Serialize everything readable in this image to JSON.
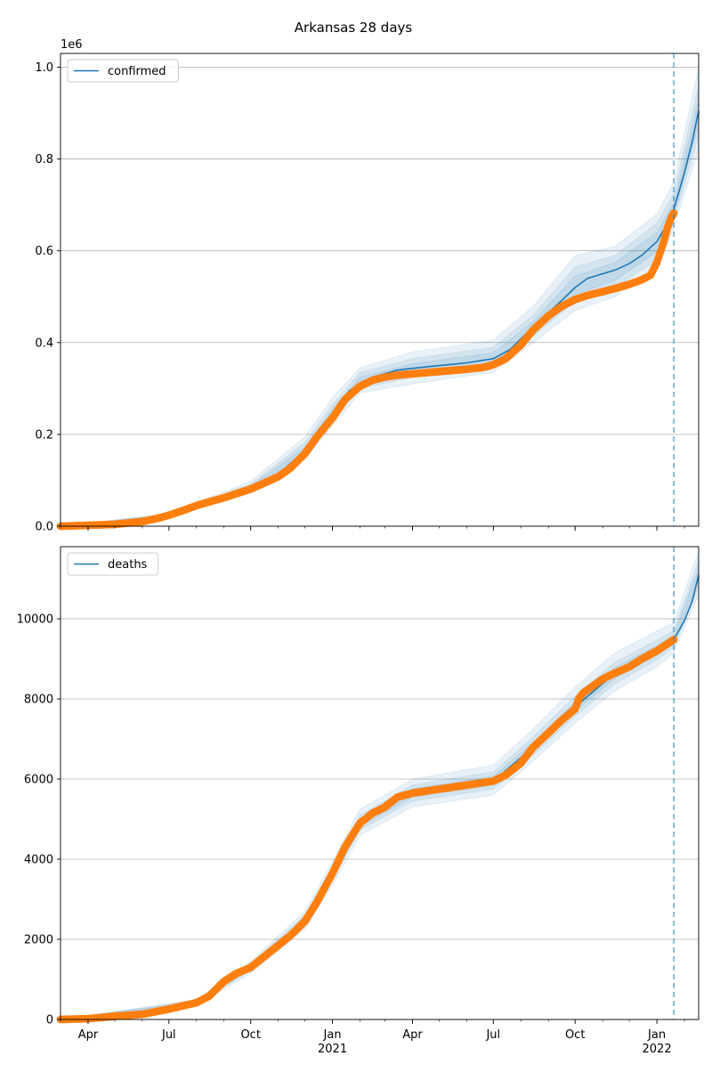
{
  "figure": {
    "title": "Arkansas 28 days"
  },
  "colors": {
    "model_line": "#1f77b4",
    "band": "#1f77b4",
    "observed": "#ff7f0e",
    "grid": "#b0b0b0",
    "cutoff_line": "#1f77b4"
  },
  "x_axis": {
    "range": [
      "2020-03-01",
      "2022-02-17"
    ],
    "ticks": [
      {
        "date": "2020-04-01",
        "label": "Apr",
        "sub": ""
      },
      {
        "date": "2020-07-01",
        "label": "Jul",
        "sub": ""
      },
      {
        "date": "2020-10-01",
        "label": "Oct",
        "sub": ""
      },
      {
        "date": "2021-01-01",
        "label": "Jan",
        "sub": "2021"
      },
      {
        "date": "2021-04-01",
        "label": "Apr",
        "sub": ""
      },
      {
        "date": "2021-07-01",
        "label": "Jul",
        "sub": ""
      },
      {
        "date": "2021-10-01",
        "label": "Oct",
        "sub": ""
      },
      {
        "date": "2022-01-01",
        "label": "Jan",
        "sub": "2022"
      }
    ],
    "cutoff_date": "2022-01-20"
  },
  "chart_data": [
    {
      "type": "line",
      "series_label": "confirmed",
      "y_offset_label": "1e6",
      "ylim": [
        0,
        1.03
      ],
      "y_ticks": [
        {
          "value": 0.0,
          "label": "0.0"
        },
        {
          "value": 0.2,
          "label": "0.2"
        },
        {
          "value": 0.4,
          "label": "0.4"
        },
        {
          "value": 0.6,
          "label": "0.6"
        },
        {
          "value": 0.8,
          "label": "0.8"
        },
        {
          "value": 1.0,
          "label": "1.0"
        }
      ],
      "grid": true,
      "legend_position": "top-left",
      "observed": [
        [
          "2020-03-01",
          0.0
        ],
        [
          "2020-04-01",
          0.002
        ],
        [
          "2020-05-01",
          0.004
        ],
        [
          "2020-06-01",
          0.01
        ],
        [
          "2020-06-20",
          0.018
        ],
        [
          "2020-07-01",
          0.024
        ],
        [
          "2020-07-15",
          0.033
        ],
        [
          "2020-08-01",
          0.045
        ],
        [
          "2020-08-15",
          0.053
        ],
        [
          "2020-09-01",
          0.062
        ],
        [
          "2020-09-15",
          0.071
        ],
        [
          "2020-10-01",
          0.081
        ],
        [
          "2020-10-15",
          0.093
        ],
        [
          "2020-11-01",
          0.108
        ],
        [
          "2020-11-15",
          0.127
        ],
        [
          "2020-12-01",
          0.158
        ],
        [
          "2020-12-15",
          0.196
        ],
        [
          "2021-01-01",
          0.236
        ],
        [
          "2021-01-15",
          0.276
        ],
        [
          "2021-02-01",
          0.305
        ],
        [
          "2021-02-15",
          0.318
        ],
        [
          "2021-03-01",
          0.325
        ],
        [
          "2021-03-15",
          0.329
        ],
        [
          "2021-04-01",
          0.332
        ],
        [
          "2021-05-01",
          0.337
        ],
        [
          "2021-06-01",
          0.342
        ],
        [
          "2021-06-20",
          0.346
        ],
        [
          "2021-07-01",
          0.352
        ],
        [
          "2021-07-15",
          0.365
        ],
        [
          "2021-08-01",
          0.395
        ],
        [
          "2021-08-15",
          0.428
        ],
        [
          "2021-09-01",
          0.458
        ],
        [
          "2021-09-15",
          0.478
        ],
        [
          "2021-10-01",
          0.494
        ],
        [
          "2021-10-15",
          0.503
        ],
        [
          "2021-11-01",
          0.511
        ],
        [
          "2021-11-15",
          0.518
        ],
        [
          "2021-12-01",
          0.527
        ],
        [
          "2021-12-15",
          0.537
        ],
        [
          "2021-12-25",
          0.547
        ],
        [
          "2022-01-01",
          0.575
        ],
        [
          "2022-01-08",
          0.615
        ],
        [
          "2022-01-13",
          0.65
        ],
        [
          "2022-01-17",
          0.672
        ],
        [
          "2022-01-20",
          0.682
        ]
      ],
      "model": [
        [
          "2020-03-01",
          0.0
        ],
        [
          "2020-06-01",
          0.01
        ],
        [
          "2020-07-01",
          0.024
        ],
        [
          "2020-08-01",
          0.046
        ],
        [
          "2020-09-01",
          0.065
        ],
        [
          "2020-10-01",
          0.085
        ],
        [
          "2020-11-01",
          0.113
        ],
        [
          "2020-12-01",
          0.165
        ],
        [
          "2021-01-01",
          0.245
        ],
        [
          "2021-01-20",
          0.295
        ],
        [
          "2021-02-15",
          0.325
        ],
        [
          "2021-03-15",
          0.34
        ],
        [
          "2021-04-01",
          0.344
        ],
        [
          "2021-05-01",
          0.35
        ],
        [
          "2021-06-01",
          0.356
        ],
        [
          "2021-07-01",
          0.365
        ],
        [
          "2021-07-20",
          0.385
        ],
        [
          "2021-08-15",
          0.435
        ],
        [
          "2021-09-15",
          0.49
        ],
        [
          "2021-10-01",
          0.52
        ],
        [
          "2021-10-15",
          0.54
        ],
        [
          "2021-11-01",
          0.55
        ],
        [
          "2021-11-15",
          0.558
        ],
        [
          "2021-12-01",
          0.572
        ],
        [
          "2021-12-15",
          0.59
        ],
        [
          "2022-01-01",
          0.62
        ],
        [
          "2022-01-10",
          0.65
        ],
        [
          "2022-01-20",
          0.69
        ],
        [
          "2022-02-01",
          0.77
        ],
        [
          "2022-02-10",
          0.84
        ],
        [
          "2022-02-17",
          0.905
        ]
      ],
      "bands": [
        {
          "opacity": 0.1,
          "points": [
            [
              "2020-03-01",
              0.0,
              0.0
            ],
            [
              "2020-07-01",
              0.021,
              0.028
            ],
            [
              "2020-10-01",
              0.075,
              0.098
            ],
            [
              "2020-12-01",
              0.145,
              0.195
            ],
            [
              "2021-01-01",
              0.22,
              0.28
            ],
            [
              "2021-02-01",
              0.29,
              0.345
            ],
            [
              "2021-04-01",
              0.31,
              0.38
            ],
            [
              "2021-07-01",
              0.335,
              0.405
            ],
            [
              "2021-08-15",
              0.4,
              0.48
            ],
            [
              "2021-10-01",
              0.47,
              0.59
            ],
            [
              "2021-11-15",
              0.5,
              0.61
            ],
            [
              "2022-01-01",
              0.56,
              0.68
            ],
            [
              "2022-01-20",
              0.65,
              0.75
            ],
            [
              "2022-02-17",
              0.82,
              1.0
            ]
          ]
        },
        {
          "opacity": 0.1,
          "points": [
            [
              "2020-03-01",
              0.0,
              0.0
            ],
            [
              "2020-07-01",
              0.022,
              0.026
            ],
            [
              "2020-10-01",
              0.079,
              0.092
            ],
            [
              "2020-12-01",
              0.152,
              0.182
            ],
            [
              "2021-01-01",
              0.23,
              0.265
            ],
            [
              "2021-02-01",
              0.3,
              0.335
            ],
            [
              "2021-04-01",
              0.325,
              0.365
            ],
            [
              "2021-07-01",
              0.345,
              0.39
            ],
            [
              "2021-08-15",
              0.415,
              0.46
            ],
            [
              "2021-10-01",
              0.49,
              0.565
            ],
            [
              "2021-11-15",
              0.52,
              0.59
            ],
            [
              "2022-01-01",
              0.58,
              0.66
            ],
            [
              "2022-01-20",
              0.665,
              0.725
            ],
            [
              "2022-02-17",
              0.85,
              0.96
            ]
          ]
        },
        {
          "opacity": 0.1,
          "points": [
            [
              "2020-03-01",
              0.0,
              0.0
            ],
            [
              "2020-07-01",
              0.023,
              0.025
            ],
            [
              "2020-10-01",
              0.082,
              0.088
            ],
            [
              "2020-12-01",
              0.158,
              0.172
            ],
            [
              "2021-01-01",
              0.238,
              0.255
            ],
            [
              "2021-02-01",
              0.308,
              0.325
            ],
            [
              "2021-04-01",
              0.336,
              0.354
            ],
            [
              "2021-07-01",
              0.355,
              0.378
            ],
            [
              "2021-08-15",
              0.425,
              0.447
            ],
            [
              "2021-10-01",
              0.505,
              0.545
            ],
            [
              "2021-11-15",
              0.535,
              0.575
            ],
            [
              "2022-01-01",
              0.598,
              0.64
            ],
            [
              "2022-01-20",
              0.676,
              0.705
            ],
            [
              "2022-02-17",
              0.875,
              0.93
            ]
          ]
        }
      ]
    },
    {
      "type": "line",
      "series_label": "deaths",
      "y_offset_label": "",
      "ylim": [
        0,
        11800
      ],
      "y_ticks": [
        {
          "value": 0,
          "label": "0"
        },
        {
          "value": 2000,
          "label": "2000"
        },
        {
          "value": 4000,
          "label": "4000"
        },
        {
          "value": 6000,
          "label": "6000"
        },
        {
          "value": 8000,
          "label": "8000"
        },
        {
          "value": 10000,
          "label": "10000"
        }
      ],
      "grid": true,
      "legend_position": "top-left",
      "observed": [
        [
          "2020-03-01",
          0
        ],
        [
          "2020-04-01",
          20
        ],
        [
          "2020-05-01",
          80
        ],
        [
          "2020-06-01",
          130
        ],
        [
          "2020-07-01",
          260
        ],
        [
          "2020-08-01",
          420
        ],
        [
          "2020-08-15",
          580
        ],
        [
          "2020-09-01",
          950
        ],
        [
          "2020-09-15",
          1150
        ],
        [
          "2020-10-01",
          1300
        ],
        [
          "2020-10-15",
          1550
        ],
        [
          "2020-11-01",
          1850
        ],
        [
          "2020-11-15",
          2100
        ],
        [
          "2020-12-01",
          2450
        ],
        [
          "2020-12-15",
          2950
        ],
        [
          "2021-01-01",
          3650
        ],
        [
          "2021-01-15",
          4300
        ],
        [
          "2021-02-01",
          4900
        ],
        [
          "2021-02-15",
          5150
        ],
        [
          "2021-03-01",
          5300
        ],
        [
          "2021-03-15",
          5550
        ],
        [
          "2021-04-01",
          5650
        ],
        [
          "2021-05-01",
          5750
        ],
        [
          "2021-06-01",
          5850
        ],
        [
          "2021-07-01",
          5950
        ],
        [
          "2021-07-15",
          6100
        ],
        [
          "2021-08-01",
          6400
        ],
        [
          "2021-08-15",
          6800
        ],
        [
          "2021-09-01",
          7150
        ],
        [
          "2021-09-15",
          7450
        ],
        [
          "2021-10-01",
          7750
        ],
        [
          "2021-10-05",
          8000
        ],
        [
          "2021-10-10",
          8150
        ],
        [
          "2021-11-01",
          8500
        ],
        [
          "2021-11-15",
          8650
        ],
        [
          "2021-12-01",
          8800
        ],
        [
          "2021-12-15",
          9000
        ],
        [
          "2022-01-01",
          9200
        ],
        [
          "2022-01-20",
          9480
        ]
      ],
      "model": [
        [
          "2020-03-01",
          0
        ],
        [
          "2020-06-01",
          130
        ],
        [
          "2020-08-01",
          420
        ],
        [
          "2020-09-01",
          950
        ],
        [
          "2020-10-01",
          1300
        ],
        [
          "2020-11-01",
          1850
        ],
        [
          "2020-12-01",
          2450
        ],
        [
          "2021-01-01",
          3650
        ],
        [
          "2021-02-01",
          4900
        ],
        [
          "2021-03-01",
          5320
        ],
        [
          "2021-04-01",
          5650
        ],
        [
          "2021-07-01",
          5950
        ],
        [
          "2021-08-15",
          6800
        ],
        [
          "2021-10-01",
          7800
        ],
        [
          "2021-11-15",
          8650
        ],
        [
          "2022-01-01",
          9200
        ],
        [
          "2022-01-20",
          9480
        ],
        [
          "2022-02-01",
          9950
        ],
        [
          "2022-02-10",
          10450
        ],
        [
          "2022-02-17",
          11100
        ]
      ],
      "bands": [
        {
          "opacity": 0.1,
          "points": [
            [
              "2020-03-01",
              0,
              0
            ],
            [
              "2020-08-01",
              350,
              500
            ],
            [
              "2020-10-01",
              1150,
              1450
            ],
            [
              "2020-12-01",
              2250,
              2700
            ],
            [
              "2021-01-01",
              3350,
              3950
            ],
            [
              "2021-02-01",
              4600,
              5250
            ],
            [
              "2021-04-01",
              5300,
              6000
            ],
            [
              "2021-07-01",
              5600,
              6350
            ],
            [
              "2021-08-15",
              6450,
              7250
            ],
            [
              "2021-10-01",
              7400,
              8300
            ],
            [
              "2021-11-15",
              8200,
              9150
            ],
            [
              "2022-01-01",
              8800,
              9700
            ],
            [
              "2022-01-20",
              9150,
              9900
            ],
            [
              "2022-02-17",
              10600,
              11700
            ]
          ]
        },
        {
          "opacity": 0.1,
          "points": [
            [
              "2020-03-01",
              0,
              0
            ],
            [
              "2020-08-01",
              380,
              470
            ],
            [
              "2020-10-01",
              1220,
              1390
            ],
            [
              "2020-12-01",
              2330,
              2600
            ],
            [
              "2021-01-01",
              3480,
              3820
            ],
            [
              "2021-02-01",
              4730,
              5100
            ],
            [
              "2021-04-01",
              5450,
              5850
            ],
            [
              "2021-07-01",
              5750,
              6180
            ],
            [
              "2021-08-15",
              6600,
              7050
            ],
            [
              "2021-10-01",
              7570,
              8070
            ],
            [
              "2021-11-15",
              8380,
              8920
            ],
            [
              "2022-01-01",
              8980,
              9470
            ],
            [
              "2022-01-20",
              9300,
              9700
            ],
            [
              "2022-02-17",
              10800,
              11450
            ]
          ]
        },
        {
          "opacity": 0.1,
          "points": [
            [
              "2020-03-01",
              0,
              0
            ],
            [
              "2020-08-01",
              400,
              445
            ],
            [
              "2020-10-01",
              1260,
              1345
            ],
            [
              "2020-12-01",
              2390,
              2520
            ],
            [
              "2021-01-01",
              3560,
              3740
            ],
            [
              "2021-02-01",
              4810,
              5000
            ],
            [
              "2021-04-01",
              5550,
              5760
            ],
            [
              "2021-07-01",
              5850,
              6070
            ],
            [
              "2021-08-15",
              6700,
              6920
            ],
            [
              "2021-10-01",
              7680,
              7930
            ],
            [
              "2021-11-15",
              8520,
              8790
            ],
            [
              "2022-01-01",
              9090,
              9330
            ],
            [
              "2022-01-20",
              9390,
              9580
            ],
            [
              "2022-02-17",
              10950,
              11280
            ]
          ]
        }
      ]
    }
  ]
}
